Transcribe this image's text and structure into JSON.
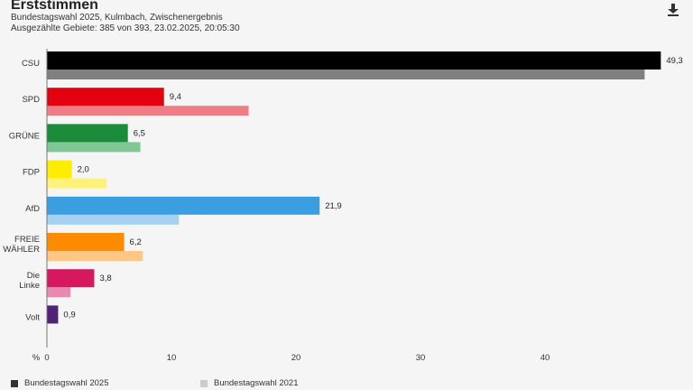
{
  "header": {
    "title": "Erststimmen",
    "subtitle_line1": "Bundestagswahl 2025, Kulmbach, Zwischenergebnis",
    "subtitle_line2": "Ausgezählte Gebiete: 385 von 393, 23.02.2025, 20:05:30"
  },
  "icons": {
    "download": "download-icon"
  },
  "legend": {
    "current_label": "Bundestagswahl 2025",
    "current_color": "#333333",
    "previous_label": "Bundestagswahl 2021",
    "previous_color": "#cccccc"
  },
  "chart_data": {
    "type": "bar",
    "orientation": "horizontal",
    "categories": [
      "CSU",
      "SPD",
      "GRÜNE",
      "FDP",
      "AfD",
      "FREIE WÄHLER",
      "Die Linke",
      "Volt"
    ],
    "series": [
      {
        "name": "Bundestagswahl 2025",
        "values": [
          49.3,
          9.4,
          6.5,
          2.0,
          21.9,
          6.2,
          3.8,
          0.9
        ],
        "labels": [
          "49,3",
          "9,4",
          "6,5",
          "2,0",
          "21,9",
          "6,2",
          "3,8",
          "0,9"
        ],
        "colors": [
          "#000000",
          "#e3000f",
          "#1a8c3a",
          "#ffed00",
          "#3a9ee0",
          "#ff8c00",
          "#d6195e",
          "#502379"
        ]
      },
      {
        "name": "Bundestagswahl 2021",
        "values": [
          48.0,
          16.2,
          7.5,
          4.8,
          10.6,
          7.7,
          1.9,
          null
        ],
        "colors": [
          "#808080",
          "#f07d85",
          "#7fc795",
          "#fff27a",
          "#a5d2f2",
          "#ffc684",
          "#e88ab0",
          "#a890c0"
        ]
      }
    ],
    "x_ticks": [
      0,
      10,
      20,
      30,
      40
    ],
    "x_unit_label": "%",
    "xlim": [
      0,
      50
    ],
    "grid": false,
    "legend_position": "bottom-left"
  }
}
